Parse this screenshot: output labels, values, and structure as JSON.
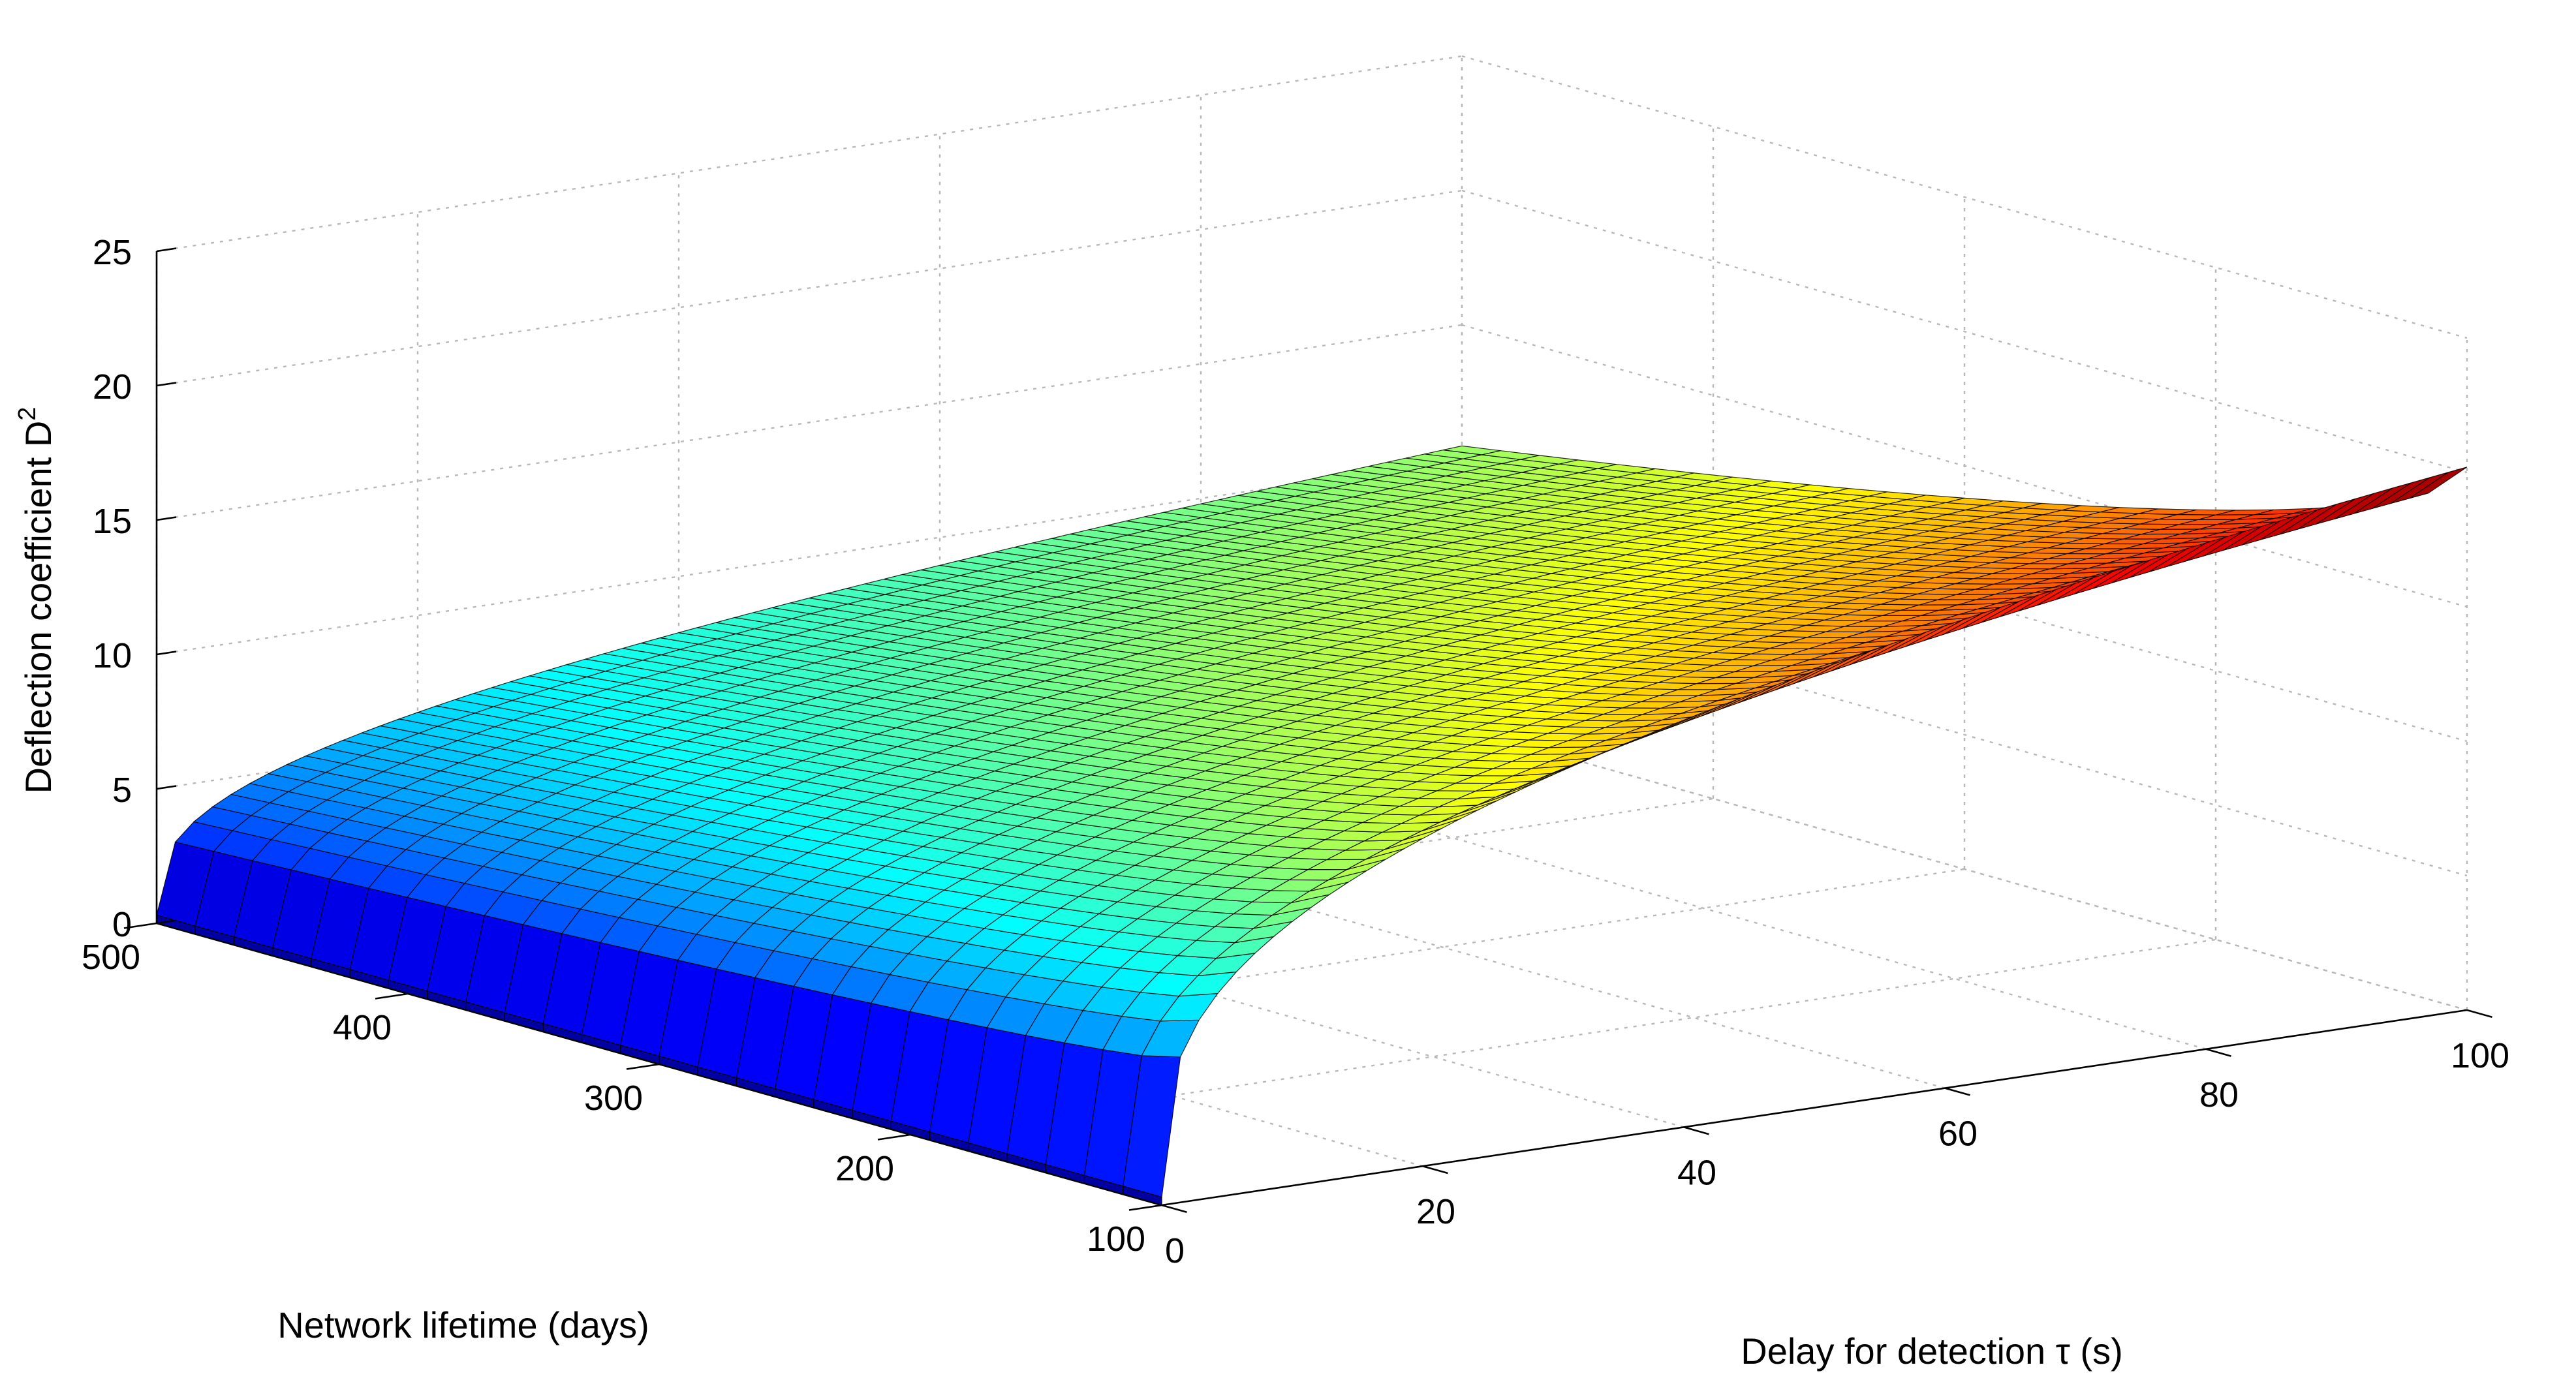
{
  "chart_data": {
    "type": "surface",
    "xlabel": "Delay for detection τ (s)",
    "ylabel": "Network lifetime (days)",
    "zlabel": "Deflection coefficient D",
    "zlabel_superscript": "2",
    "x_ticks": [
      "0",
      "20",
      "40",
      "60",
      "80",
      "100"
    ],
    "y_ticks": [
      "100",
      "200",
      "300",
      "400",
      "500"
    ],
    "z_ticks": [
      "0",
      "5",
      "10",
      "15",
      "20",
      "25"
    ],
    "xlim": [
      0,
      100
    ],
    "ylim": [
      100,
      500
    ],
    "zlim": [
      0,
      25
    ],
    "grid": true,
    "colormap": "jet",
    "colormap_stops": [
      "#00008f",
      "#0000ff",
      "#00ffff",
      "#ffff00",
      "#ff0000",
      "#800000"
    ],
    "surface_corners": [
      {
        "tau": 0,
        "lifetime": 500,
        "D2": 0.3
      },
      {
        "tau": 100,
        "lifetime": 500,
        "D2": 10.5
      },
      {
        "tau": 0,
        "lifetime": 100,
        "D2": 0.3
      },
      {
        "tau": 100,
        "lifetime": 100,
        "D2": 20.2
      }
    ]
  }
}
